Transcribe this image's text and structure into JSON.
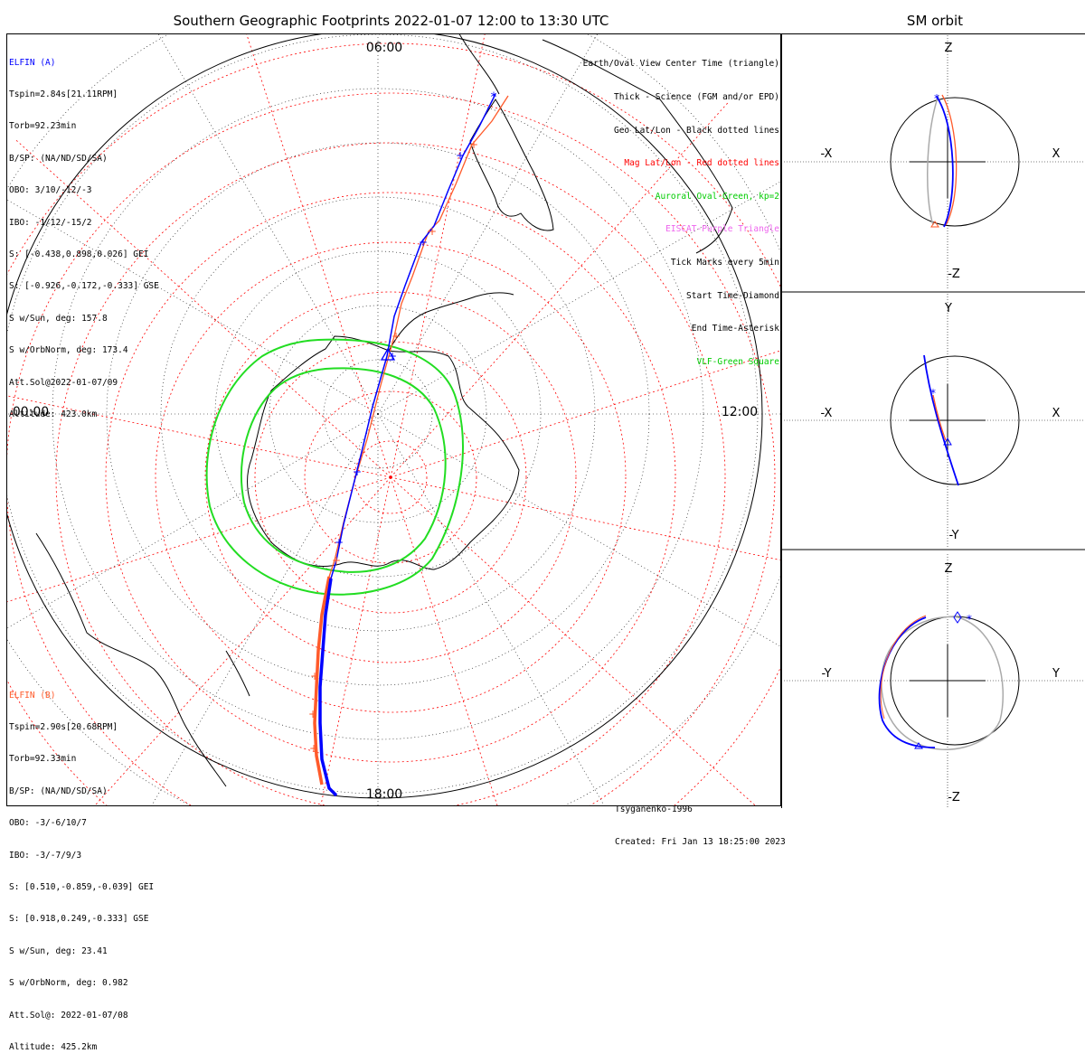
{
  "title": "Southern Geographic Footprints 2022-01-07 12:00 to 13:30 UTC",
  "sm_title": "SM orbit",
  "clock_labels": {
    "top": "06:00",
    "left": "00:00",
    "right": "12:00",
    "bottom": "18:00"
  },
  "elfin_a": {
    "name": "ELFIN (A)",
    "color": "#0000ff",
    "lines": [
      "Tspin=2.84s[21.11RPM]",
      "Torb=92.23min",
      "B/SP: (NA/ND/SD/SA)",
      "OBO: 3/10/-12/-3",
      "IBO: -1/12/-15/2",
      "S: [-0.438,0.898,0.026] GEI",
      "S: [-0.926,-0.172,-0.333] GSE",
      "S w/Sun, deg: 157.8",
      "S w/OrbNorm, deg: 173.4",
      "Att.Sol@2022-01-07/09",
      "Altitude: 423.0km"
    ]
  },
  "elfin_b": {
    "name": "ELFIN (B)",
    "color": "#ff5a2a",
    "lines": [
      "Tspin=2.90s[20.68RPM]",
      "Torb=92.33min",
      "B/SP: (NA/ND/SD/SA)",
      "OBO: -3/-6/10/7",
      "IBO: -3/-7/9/3",
      "S: [0.510,-0.859,-0.039] GEI",
      "S: [0.918,0.249,-0.333] GSE",
      "S w/Sun, deg: 23.41",
      "S w/OrbNorm, deg: 0.982",
      "Att.Sol@: 2022-01-07/08",
      "Altitude: 425.2km"
    ]
  },
  "legend": [
    {
      "text": "Earth/Oval View Center Time (triangle)",
      "color": "#000000"
    },
    {
      "text": "Thick - Science (FGM and/or EPD)",
      "color": "#000000"
    },
    {
      "text": "Geo Lat/Lon - Black dotted lines",
      "color": "#000000"
    },
    {
      "text": "Mag Lat/Lon - Red dotted lines",
      "color": "#ff0000"
    },
    {
      "text": "Auroral Oval-Green, kp=2",
      "color": "#00cc00"
    },
    {
      "text": "EISCAT-Purple Triangle",
      "color": "#ee66ee"
    },
    {
      "text": "Tick Marks every 5min",
      "color": "#000000"
    },
    {
      "text": "Start Time-Diamond",
      "color": "#000000"
    },
    {
      "text": "End Time-Asterisk",
      "color": "#000000"
    },
    {
      "text": "VLF-Green Square",
      "color": "#00cc00"
    }
  ],
  "footer": {
    "model": "Tsyganenko-1996",
    "created": "Created: Fri Jan 13 18:25:00 2023"
  },
  "sm_panels": [
    {
      "top": "Z",
      "bottom": "-Z",
      "left": "-X",
      "right": "X"
    },
    {
      "top": "Y",
      "bottom": "-Y",
      "left": "-X",
      "right": "X"
    },
    {
      "top": "Z",
      "bottom": "-Z",
      "left": "-Y",
      "right": "Y"
    }
  ],
  "colors": {
    "oval": "#22dd22",
    "mag_grid": "#ff0000",
    "geo_grid": "#000000"
  }
}
